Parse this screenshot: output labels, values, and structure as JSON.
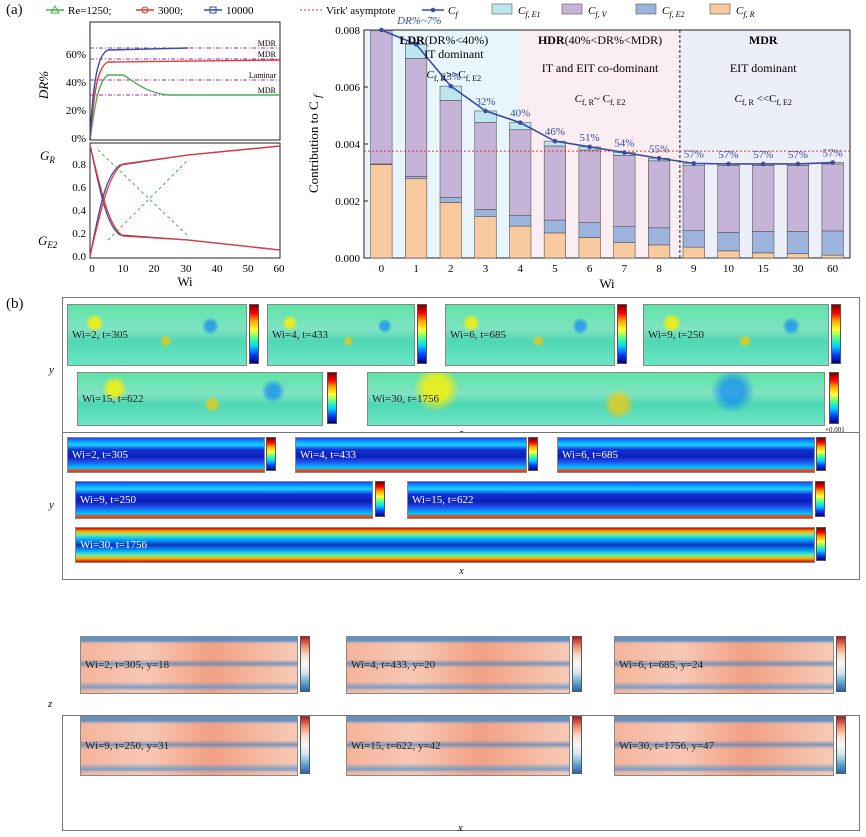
{
  "panel_labels": {
    "a": "(a)",
    "b": "(b)"
  },
  "dr_chart": {
    "legend": [
      "Re=1250;",
      "3000;",
      "10000"
    ],
    "ylabel": "DR%",
    "yticks": [
      "0%",
      "20%",
      "40%",
      "60%"
    ],
    "annotations": [
      "MDR",
      "MDR",
      "Laminar",
      "MDR"
    ]
  },
  "g_chart": {
    "ylabel_top": "G",
    "ylabel_top_sub": "R",
    "ylabel_bottom": "G",
    "ylabel_bottom_sub": "E2",
    "yticks": [
      "0.0",
      "0.2",
      "0.4",
      "0.6",
      "0.8"
    ],
    "xticks": [
      "0",
      "10",
      "20",
      "30",
      "40",
      "50",
      "60"
    ],
    "xlabel": "Wi"
  },
  "chart_data": {
    "type": "bar",
    "categories": [
      "0",
      "1",
      "2",
      "3",
      "4",
      "5",
      "6",
      "7",
      "8",
      "9",
      "10",
      "15",
      "30",
      "60"
    ],
    "xlabel": "Wi",
    "ylabel": "Contribution to C",
    "ylabel_sub": "f",
    "ylim": [
      0,
      0.008
    ],
    "yticks": [
      "0.000",
      "0.002",
      "0.004",
      "0.006",
      "0.008"
    ],
    "legend": [
      "Virk' asymptote",
      "C",
      "C",
      "C",
      "C",
      "C"
    ],
    "legend_subs": [
      "",
      "f",
      "f, E1",
      "f, V",
      "f, E2",
      "f, R"
    ],
    "series": [
      {
        "name": "C_f,R",
        "color": "#f9c9a0",
        "values": [
          0.00328,
          0.00278,
          0.00195,
          0.00145,
          0.00112,
          0.00088,
          0.00072,
          0.00055,
          0.00046,
          0.00038,
          0.00025,
          0.00018,
          0.00015,
          0.0001
        ]
      },
      {
        "name": "C_f,E2",
        "color": "#9cb4dc",
        "values": [
          2e-05,
          8e-05,
          0.00018,
          0.00025,
          0.00038,
          0.00045,
          0.00052,
          0.00055,
          0.0006,
          0.00058,
          0.00065,
          0.00075,
          0.00078,
          0.00085
        ]
      },
      {
        "name": "C_f,V",
        "color": "#c5b3d8",
        "values": [
          0.00468,
          0.00414,
          0.0034,
          0.00306,
          0.003,
          0.0026,
          0.00255,
          0.0025,
          0.00235,
          0.00228,
          0.00235,
          0.00232,
          0.00232,
          0.00235
        ]
      },
      {
        "name": "C_f,E1",
        "color": "#bde7f0",
        "values": [
          2e-05,
          0.0005,
          0.0005,
          0.0004,
          0.00025,
          0.00017,
          0.00011,
          0.0001,
          9e-05,
          8e-05,
          5e-05,
          5e-05,
          5e-05,
          5e-05
        ]
      }
    ],
    "cf_line": [
      0.008,
      0.0075,
      0.00603,
      0.00516,
      0.00475,
      0.0041,
      0.0039,
      0.0037,
      0.0035,
      0.00332,
      0.0033,
      0.0033,
      0.0033,
      0.00335
    ],
    "virk": 0.00375,
    "dr_labels": [
      "DR%~7%",
      "",
      "23%",
      "32%",
      "40%",
      "46%",
      "51%",
      "54%",
      "55%",
      "57%",
      "57%",
      "57%",
      "57%",
      "57%"
    ],
    "regions": [
      {
        "title": "LDR",
        "range": "(DR%<40%)",
        "text": "IT dominant",
        "rel": "C",
        "rel_a": "f, R",
        "rel_op": ">>C",
        "rel_b": "f, E2"
      },
      {
        "title": "HDR",
        "range": "(40%<DR%<MDR)",
        "text": "IT and EIT co-dominant",
        "rel": "C",
        "rel_a": "f, R",
        "rel_op": "~ C",
        "rel_b": "f, E2"
      },
      {
        "title": "MDR",
        "range": "",
        "text": "EIT dominant",
        "rel": "C",
        "rel_a": "f, R",
        "rel_op": " <<C",
        "rel_b": "f, E2"
      }
    ]
  },
  "fields": {
    "row1": {
      "ylabel": "y",
      "xlabel": "z",
      "panels": [
        "Wi=2, t=305",
        "Wi=4, t=433",
        "Wi=6, t=685",
        "Wi=9, t=250",
        "Wi=15, t=622",
        "Wi=30, t=1756"
      ],
      "cbars": [
        [
          "1.3",
          "0.65",
          "0",
          "-0.65",
          "-1.3"
        ],
        [
          "0.6",
          "0.3",
          "0",
          "-0.3",
          "-0.6"
        ],
        [
          "0.2",
          "0.1",
          "0",
          "-0.1",
          "-0.2"
        ],
        [
          "0.1",
          "0.05",
          "0",
          "-0.05",
          "-0.1"
        ],
        [
          "0.001",
          "0.0005",
          "0",
          "-0.0005",
          "-0.001"
        ],
        [
          "2.5",
          "1.25",
          "0",
          "-1.25",
          "-2.5"
        ]
      ],
      "unit": "×0.001"
    },
    "row2": {
      "ylabel": "y",
      "xlabel": "x",
      "panels": [
        "Wi=2, t=305",
        "Wi=4, t=433",
        "Wi=6, t=685",
        "Wi=9, t=250",
        "Wi=15, t=622",
        "Wi=30, t=1756"
      ],
      "cbars": [
        [
          "45",
          "34",
          "23",
          "13",
          "2"
        ],
        [
          "100",
          "75",
          "50",
          "25",
          "2"
        ],
        [
          "120",
          "90",
          "60",
          "30",
          "2"
        ],
        [
          "180",
          "136",
          "91",
          "47",
          "2"
        ],
        [
          "400",
          "301",
          "201",
          "102",
          "2"
        ],
        [
          "400",
          "301",
          "201",
          "102",
          "2"
        ]
      ]
    },
    "row3": {
      "ylabel": "z",
      "xlabel": "x",
      "panels": [
        "Wi=2, t=305, y=18",
        "Wi=4, t=433, y=20",
        "Wi=6, t=685, y=24",
        "Wi=9, t=250, y=31",
        "Wi=15, t=622, y=42",
        "Wi=30, t=1756, y=47"
      ],
      "cbars": [
        [
          "1.2",
          "1.0",
          "0.8",
          "0.5",
          "0.3"
        ],
        [
          "1.1",
          "0.9",
          "0.7",
          "0.5",
          "0.3"
        ],
        [
          "1.2",
          "1.0",
          "0.8",
          "0.6",
          "0.4"
        ],
        [
          "1.2",
          "1.0",
          "0.8",
          "0.5",
          "0.5"
        ],
        [
          "1.3",
          "1.1",
          "0.9",
          "0.7",
          "0.7"
        ],
        [
          "1.3",
          "1.1",
          "0.9",
          "0.7",
          "0.5"
        ]
      ]
    }
  }
}
